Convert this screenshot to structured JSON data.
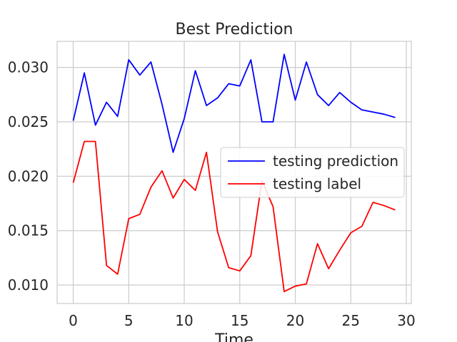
{
  "chart_data": {
    "type": "line",
    "title": "Best Prediction",
    "xlabel": "Time",
    "ylabel": "",
    "xlim": [
      -1.45,
      30.45
    ],
    "ylim": [
      0.0083,
      0.0324
    ],
    "xticks": [
      0,
      5,
      10,
      15,
      20,
      25,
      30
    ],
    "xtick_labels": [
      "0",
      "5",
      "10",
      "15",
      "20",
      "25",
      "30"
    ],
    "yticks": [
      0.01,
      0.015,
      0.02,
      0.025,
      0.03
    ],
    "ytick_labels": [
      "0.010",
      "0.015",
      "0.020",
      "0.025",
      "0.030"
    ],
    "grid": true,
    "legend_position": "center-right",
    "x": [
      0,
      1,
      2,
      3,
      4,
      5,
      6,
      7,
      8,
      9,
      10,
      11,
      12,
      13,
      14,
      15,
      16,
      17,
      18,
      19,
      20,
      21,
      22,
      23,
      24,
      25,
      26,
      27,
      28,
      29
    ],
    "series": [
      {
        "name": "testing prediction",
        "color": "#0000ff",
        "values": [
          0.0251,
          0.0295,
          0.0247,
          0.0268,
          0.0255,
          0.0307,
          0.0293,
          0.0305,
          0.0266,
          0.0222,
          0.0253,
          0.0297,
          0.0265,
          0.0272,
          0.0285,
          0.0283,
          0.0307,
          0.025,
          0.025,
          0.0312,
          0.027,
          0.0305,
          0.0275,
          0.0265,
          0.0277,
          0.0268,
          0.0261,
          0.0259,
          0.0257,
          0.0254
        ]
      },
      {
        "name": "testing label",
        "color": "#ff0000",
        "values": [
          0.0194,
          0.0232,
          0.0232,
          0.0118,
          0.011,
          0.0161,
          0.0165,
          0.019,
          0.0205,
          0.018,
          0.0197,
          0.0187,
          0.0222,
          0.0149,
          0.0116,
          0.0113,
          0.0127,
          0.0196,
          0.0172,
          0.0094,
          0.0099,
          0.0101,
          0.0138,
          0.0115,
          0.0132,
          0.0148,
          0.0154,
          0.0176,
          0.0173,
          0.0169
        ]
      }
    ]
  }
}
